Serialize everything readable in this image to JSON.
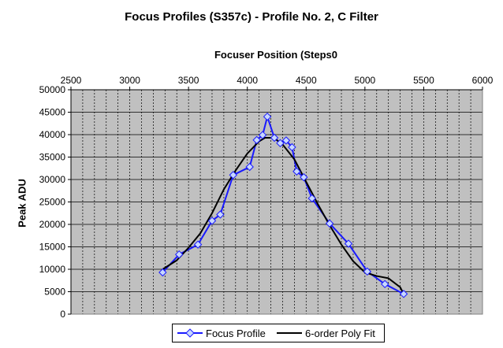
{
  "chart_data": {
    "type": "line",
    "title": "Focus Profiles (S357c) -  Profile No. 2, C Filter",
    "xlabel": "Focuser Position (Steps0",
    "ylabel": "Peak ADU",
    "x_axis_position": "top",
    "xlim": [
      2500,
      6000
    ],
    "ylim": [
      0,
      50000
    ],
    "x_ticks": [
      "2500",
      "3000",
      "3500",
      "4000",
      "4500",
      "5000",
      "5500",
      "6000"
    ],
    "y_ticks": [
      "0",
      "5000",
      "10000",
      "15000",
      "20000",
      "25000",
      "30000",
      "35000",
      "40000",
      "45000",
      "50000"
    ],
    "grid": true,
    "legend_position": "bottom",
    "series": [
      {
        "name": "Focus Profile",
        "color": "#1a1aff",
        "marker": "diamond",
        "x": [
          3280,
          3420,
          3580,
          3700,
          3770,
          3880,
          4020,
          4080,
          4130,
          4170,
          4230,
          4280,
          4330,
          4380,
          4420,
          4480,
          4550,
          4700,
          4860,
          5020,
          5170,
          5330
        ],
        "y": [
          9300,
          13300,
          15500,
          20800,
          22200,
          31000,
          32800,
          38800,
          39900,
          44000,
          39300,
          38100,
          38700,
          37200,
          31800,
          30500,
          25800,
          20200,
          15700,
          9500,
          6700,
          4500
        ]
      },
      {
        "name": "6-order Poly Fit",
        "color": "#000000",
        "x": [
          3280,
          3400,
          3500,
          3600,
          3700,
          3800,
          3900,
          4000,
          4100,
          4150,
          4200,
          4250,
          4300,
          4400,
          4500,
          4600,
          4700,
          4800,
          4900,
          5000,
          5100,
          5200,
          5300,
          5330
        ],
        "y": [
          10000,
          12000,
          14800,
          18000,
          22500,
          27800,
          32000,
          35800,
          38500,
          39300,
          39300,
          38800,
          37800,
          34500,
          29500,
          24500,
          19800,
          15500,
          11800,
          9300,
          8500,
          8000,
          6000,
          4500
        ]
      }
    ]
  }
}
